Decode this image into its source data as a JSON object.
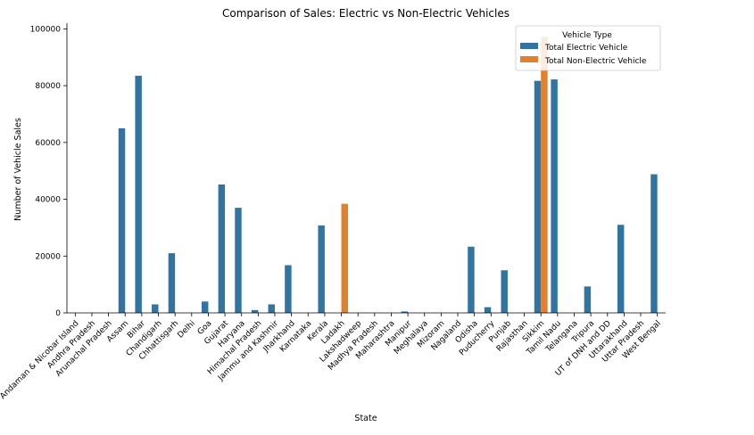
{
  "chart_data": {
    "type": "bar",
    "title": "Comparison of Sales: Electric vs Non-Electric Vehicles",
    "xlabel": "State",
    "ylabel": "Number of Vehicle Sales",
    "ylim": [
      0,
      102000
    ],
    "yticks": [
      0,
      20000,
      40000,
      60000,
      80000,
      100000
    ],
    "legend": {
      "title": "Vehicle Type",
      "position": "top-right",
      "entries": [
        "Total Electric Vehicle",
        "Total Non-Electric Vehicle"
      ]
    },
    "colors": {
      "electric": "#3274a1",
      "non_electric": "#e1812c"
    },
    "categories": [
      "Andaman & Nicobar Island",
      "Andhra Pradesh",
      "Arunachal Pradesh",
      "Assam",
      "Bihar",
      "Chandigarh",
      "Chhattisgarh",
      "Delhi",
      "Goa",
      "Gujarat",
      "Haryana",
      "Himachal Pradesh",
      "Jammu and Kashmir",
      "Jharkhand",
      "Karnataka",
      "Kerala",
      "Ladakh",
      "Lakshadweep",
      "Madhya Pradesh",
      "Maharashtra",
      "Manipur",
      "Meghalaya",
      "Mizoram",
      "Nagaland",
      "Odisha",
      "Puducherry",
      "Punjab",
      "Rajasthan",
      "Sikkim",
      "Tamil Nadu",
      "Telangana",
      "Tripura",
      "UT of DNH and DD",
      "Uttarakhand",
      "Uttar Pradesh",
      "West Bengal"
    ],
    "series": [
      {
        "name": "Total Electric Vehicle",
        "color": "#3274a1",
        "values": [
          0,
          0,
          0,
          65000,
          83500,
          3000,
          21000,
          0,
          4000,
          45200,
          37000,
          1000,
          3000,
          16800,
          0,
          30800,
          0,
          0,
          0,
          0,
          500,
          0,
          0,
          0,
          23300,
          2000,
          15000,
          0,
          81700,
          82200,
          0,
          9300,
          0,
          31000,
          0,
          48800
        ]
      },
      {
        "name": "Total Non-Electric Vehicle",
        "color": "#e1812c",
        "values": [
          0,
          0,
          0,
          0,
          0,
          0,
          0,
          0,
          0,
          0,
          0,
          0,
          0,
          0,
          0,
          0,
          38400,
          0,
          0,
          0,
          0,
          0,
          0,
          0,
          0,
          0,
          0,
          0,
          97200,
          0,
          0,
          0,
          0,
          0,
          0,
          0
        ]
      }
    ]
  }
}
